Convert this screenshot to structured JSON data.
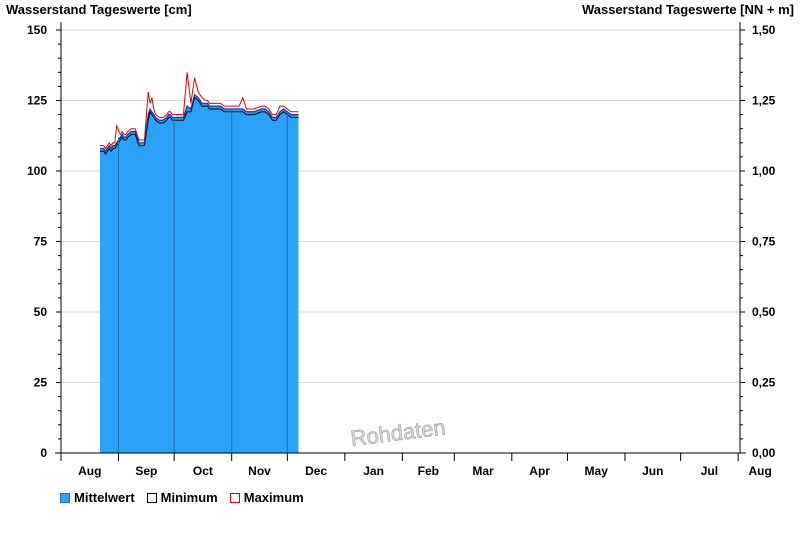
{
  "chart_data": {
    "type": "area",
    "ylabel_left": "Wasserstand Tageswerte [cm]",
    "ylabel_right": "Wasserstand Tageswerte [NN + m]",
    "ylim_left": [
      0,
      150
    ],
    "ylim_right": [
      0.0,
      1.5
    ],
    "yticks_left": [
      "0",
      "25",
      "50",
      "75",
      "100",
      "125",
      "150"
    ],
    "yticks_right": [
      "0,00",
      "0,25",
      "0,50",
      "0,75",
      "1,00",
      "1,25",
      "1,50"
    ],
    "months": [
      "Aug",
      "Sep",
      "Oct",
      "Nov",
      "Dec",
      "Jan",
      "Feb",
      "Mar",
      "Apr",
      "May",
      "Jun",
      "Jul",
      "Aug"
    ],
    "grid": true,
    "watermark": "Rohdaten",
    "legend": [
      "Mittelwert",
      "Minimum",
      "Maximum"
    ],
    "legend_position": "bottom-left",
    "colors": {
      "mean": "#2aa2f7",
      "min": "#000000",
      "max": "#e00000",
      "month_line": "#1a6fb0"
    },
    "series": [
      {
        "name": "Mittelwert",
        "x": [
          21,
          23,
          24,
          25,
          26,
          27,
          28,
          29,
          30,
          32,
          33,
          34,
          35,
          36,
          38,
          40,
          42,
          45,
          47,
          48,
          49,
          50,
          51,
          53,
          55,
          57,
          58,
          59,
          60,
          61,
          62,
          64,
          66,
          68,
          70,
          72,
          74,
          76,
          78,
          79,
          80,
          81,
          82,
          84,
          86,
          88,
          90,
          92,
          94,
          96,
          98,
          100,
          104,
          108,
          110,
          112,
          114,
          116,
          118,
          120,
          122,
          124,
          126,
          128
        ],
        "values": [
          108,
          108,
          107,
          108,
          109,
          108,
          109,
          109,
          110,
          112,
          113,
          112,
          112,
          113,
          114,
          114,
          110,
          110,
          120,
          122,
          121,
          120,
          119,
          118,
          118,
          119,
          120,
          120,
          119,
          119,
          119,
          119,
          119,
          123,
          122,
          127,
          126,
          124,
          124,
          124,
          123,
          123,
          123,
          123,
          123,
          122,
          122,
          122,
          122,
          122,
          122,
          121,
          121,
          122,
          122,
          121,
          119,
          119,
          121,
          122,
          121,
          120,
          120,
          120
        ]
      },
      {
        "name": "Minimum",
        "x": [
          21,
          23,
          24,
          25,
          26,
          27,
          28,
          29,
          30,
          32,
          33,
          34,
          35,
          36,
          38,
          40,
          42,
          45,
          47,
          48,
          49,
          50,
          51,
          53,
          55,
          57,
          58,
          59,
          60,
          61,
          62,
          64,
          66,
          68,
          70,
          72,
          74,
          76,
          78,
          79,
          80,
          81,
          82,
          84,
          86,
          88,
          90,
          92,
          94,
          96,
          98,
          100,
          104,
          108,
          110,
          112,
          114,
          116,
          118,
          120,
          122,
          124,
          126,
          128
        ],
        "values": [
          107,
          107,
          106,
          107,
          108,
          107,
          108,
          108,
          109,
          111,
          112,
          111,
          111,
          112,
          113,
          113,
          109,
          109,
          118,
          121,
          120,
          119,
          118,
          117,
          117,
          118,
          119,
          119,
          118,
          118,
          118,
          118,
          118,
          121,
          121,
          126,
          125,
          123,
          123,
          123,
          122,
          122,
          122,
          122,
          122,
          121,
          121,
          121,
          121,
          121,
          121,
          120,
          120,
          121,
          121,
          120,
          118,
          118,
          120,
          121,
          120,
          119,
          119,
          119
        ]
      },
      {
        "name": "Maximum",
        "x": [
          21,
          23,
          24,
          25,
          26,
          27,
          28,
          29,
          30,
          32,
          33,
          34,
          35,
          36,
          38,
          40,
          42,
          45,
          47,
          48,
          49,
          50,
          51,
          53,
          55,
          57,
          58,
          59,
          60,
          61,
          62,
          64,
          66,
          68,
          70,
          72,
          74,
          76,
          78,
          79,
          80,
          81,
          82,
          84,
          86,
          88,
          90,
          92,
          94,
          96,
          98,
          100,
          104,
          108,
          110,
          112,
          114,
          116,
          118,
          120,
          122,
          124,
          126,
          128
        ],
        "values": [
          109,
          109,
          108,
          109,
          110,
          109,
          110,
          110,
          116,
          113,
          114,
          113,
          113,
          114,
          115,
          115,
          111,
          111,
          128,
          124,
          126,
          122,
          120,
          119,
          119,
          120,
          121,
          121,
          120,
          120,
          120,
          120,
          120,
          135,
          124,
          133,
          128,
          126,
          125,
          125,
          124,
          124,
          124,
          124,
          124,
          123,
          123,
          123,
          123,
          123,
          126,
          122,
          122,
          123,
          123,
          122,
          120,
          120,
          123,
          123,
          122,
          121,
          121,
          121
        ]
      }
    ]
  }
}
